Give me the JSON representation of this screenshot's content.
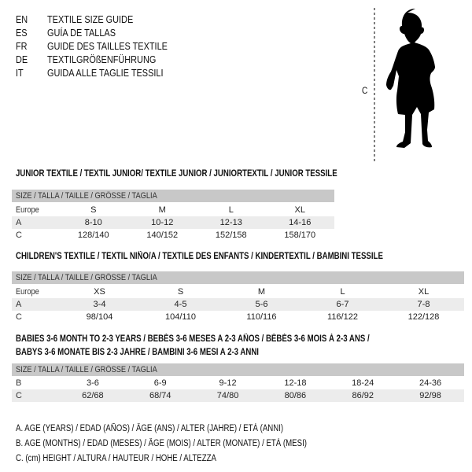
{
  "languages": [
    {
      "code": "EN",
      "title": "TEXTILE SIZE GUIDE"
    },
    {
      "code": "ES",
      "title": "GUÍA DE TALLAS"
    },
    {
      "code": "FR",
      "title": "GUIDE DES TAILLES TEXTILE"
    },
    {
      "code": "DE",
      "title": "TEXTILGRÖßENFÜHRUNG"
    },
    {
      "code": "IT",
      "title": "GUIDA ALLE TAGLIE TESSILI"
    }
  ],
  "figure": {
    "label": "C",
    "icon": "baby-silhouette"
  },
  "size_header": "SIZE / TALLA / TAILLE / GRÖSSE / TAGLIA",
  "junior": {
    "title": "JUNIOR TEXTILE / TEXTIL JUNIOR/ TEXTILE JUNIOR / JUNIORTEXTIL / JUNIOR TESSILE",
    "rows": [
      {
        "label": "Europe",
        "cells": [
          "S",
          "M",
          "L",
          "XL"
        ]
      },
      {
        "label": "A",
        "cells": [
          "8-10",
          "10-12",
          "12-13",
          "14-16"
        ]
      },
      {
        "label": "C",
        "cells": [
          "128/140",
          "140/152",
          "152/158",
          "158/170"
        ]
      }
    ]
  },
  "children": {
    "title": "CHILDREN'S TEXTILE / TEXTIL NIÑO/A / TEXTILE DES ENFANTS / KINDERTEXTIL / BAMBINI TESSILE",
    "rows": [
      {
        "label": "Europe",
        "cells": [
          "XS",
          "S",
          "M",
          "L",
          "XL"
        ]
      },
      {
        "label": "A",
        "cells": [
          "3-4",
          "4-5",
          "5-6",
          "6-7",
          "7-8"
        ]
      },
      {
        "label": "C",
        "cells": [
          "98/104",
          "104/110",
          "110/116",
          "116/122",
          "122/128"
        ]
      }
    ]
  },
  "babies": {
    "title_line1": "BABIES 3-6 MONTH TO 2-3 YEARS / BEBÉS 3-6 MESES A 2-3 AÑOS / BÉBÉS 3-6 MOIS À 2-3 ANS /",
    "title_line2": "BABYS 3-6 MONATE BIS 2-3 JAHRE / BAMBINI 3-6 MESI A 2-3 ANNI",
    "rows": [
      {
        "label": "B",
        "cells": [
          "3-6",
          "6-9",
          "9-12",
          "12-18",
          "18-24",
          "24-36"
        ]
      },
      {
        "label": "C",
        "cells": [
          "62/68",
          "68/74",
          "74/80",
          "80/86",
          "86/92",
          "92/98"
        ]
      }
    ]
  },
  "notes": [
    "A. AGE (YEARS) / EDAD (AÑOS) / ÂGE (ANS) / ALTER (JAHRE) / ETÀ (ANNI)",
    "B. AGE (MONTHS) / EDAD (MESES) / ÂGE (MOIS) / ALTER (MONATE) / ETÀ (MESI)",
    "C. (cm) HEIGHT / ALTURA / HAUTEUR / HÖHE / ALTEZZA"
  ]
}
